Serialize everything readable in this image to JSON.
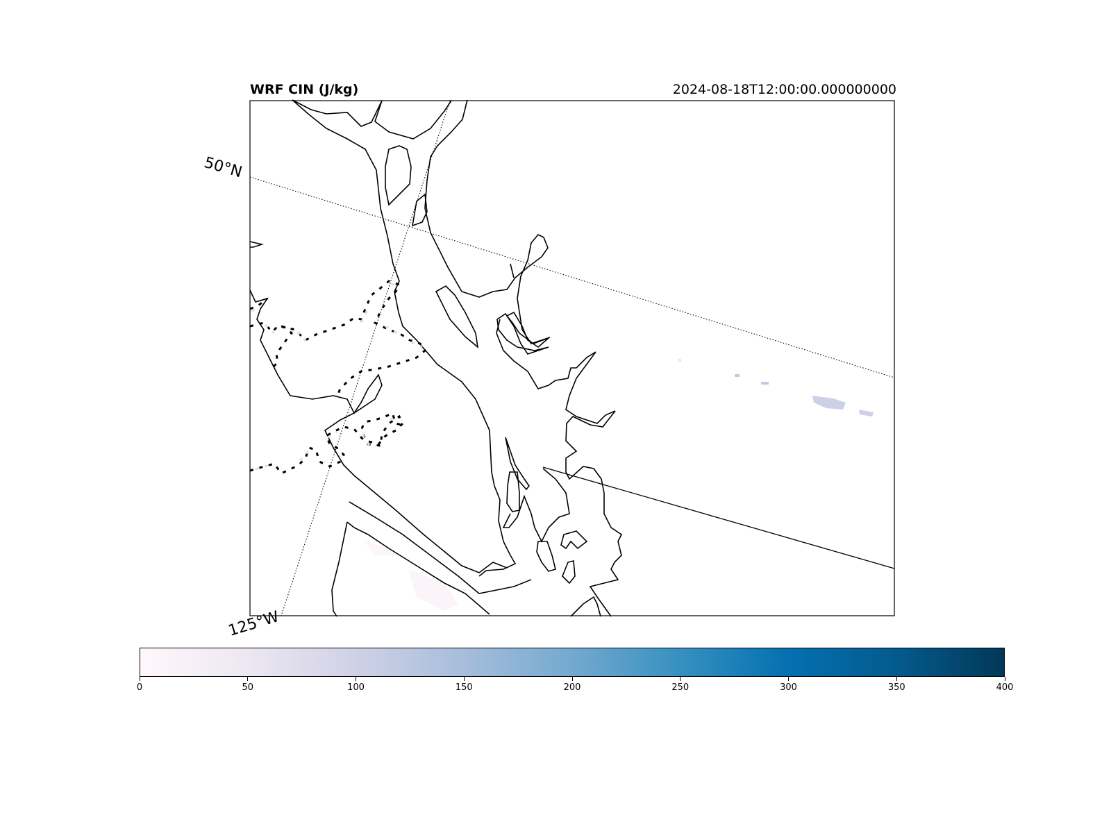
{
  "map": {
    "title": "WRF CIN (J/kg)",
    "time": "2024-08-18T12:00:00.000000000",
    "lat_label": "50°N",
    "lon_label": "125°W",
    "colormap": "PuBu",
    "colorbar": {
      "min": 0,
      "max": 400,
      "ticks": [
        "0",
        "50",
        "100",
        "150",
        "200",
        "250",
        "300",
        "350",
        "400"
      ],
      "colors": [
        "#fff7fb",
        "#ece7f2",
        "#d0d1e6",
        "#a6bddb",
        "#74a9cf",
        "#3690c0",
        "#0570b0",
        "#045a8d",
        "#023858"
      ]
    }
  }
}
